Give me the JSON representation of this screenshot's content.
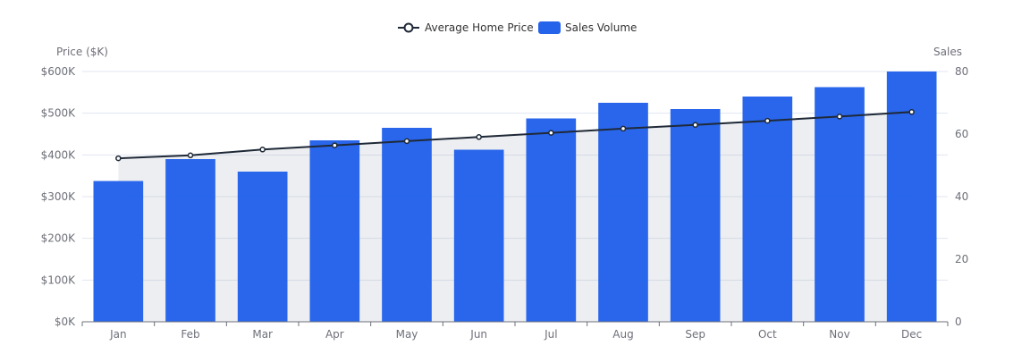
{
  "chart_data": {
    "type": "bar",
    "categories": [
      "Jan",
      "Feb",
      "Mar",
      "Apr",
      "May",
      "Jun",
      "Jul",
      "Aug",
      "Sep",
      "Oct",
      "Nov",
      "Dec"
    ],
    "series": [
      {
        "name": "Average Home Price",
        "type": "line",
        "axis": "left",
        "values": [
          392,
          399,
          413,
          423,
          433,
          443,
          453,
          463,
          472,
          482,
          492,
          503
        ],
        "area_fill": true,
        "color": "#1f2937"
      },
      {
        "name": "Sales Volume",
        "type": "bar",
        "axis": "right",
        "values": [
          45,
          52,
          48,
          58,
          62,
          55,
          65,
          70,
          68,
          72,
          75,
          80
        ],
        "color": "#2563eb"
      }
    ],
    "y_left": {
      "label": "Price ($K)",
      "ylim": [
        0,
        600
      ],
      "ticks": [
        0,
        100,
        200,
        300,
        400,
        500,
        600
      ],
      "tick_labels": [
        "$0K",
        "$100K",
        "$200K",
        "$300K",
        "$400K",
        "$500K",
        "$600K"
      ]
    },
    "y_right": {
      "label": "Sales",
      "ylim": [
        0,
        80
      ],
      "ticks": [
        0,
        20,
        40,
        60,
        80
      ],
      "tick_labels": [
        "0",
        "20",
        "40",
        "60",
        "80"
      ]
    },
    "legend": {
      "position": "top-center",
      "items": [
        "Average Home Price",
        "Sales Volume"
      ]
    },
    "grid": true
  }
}
